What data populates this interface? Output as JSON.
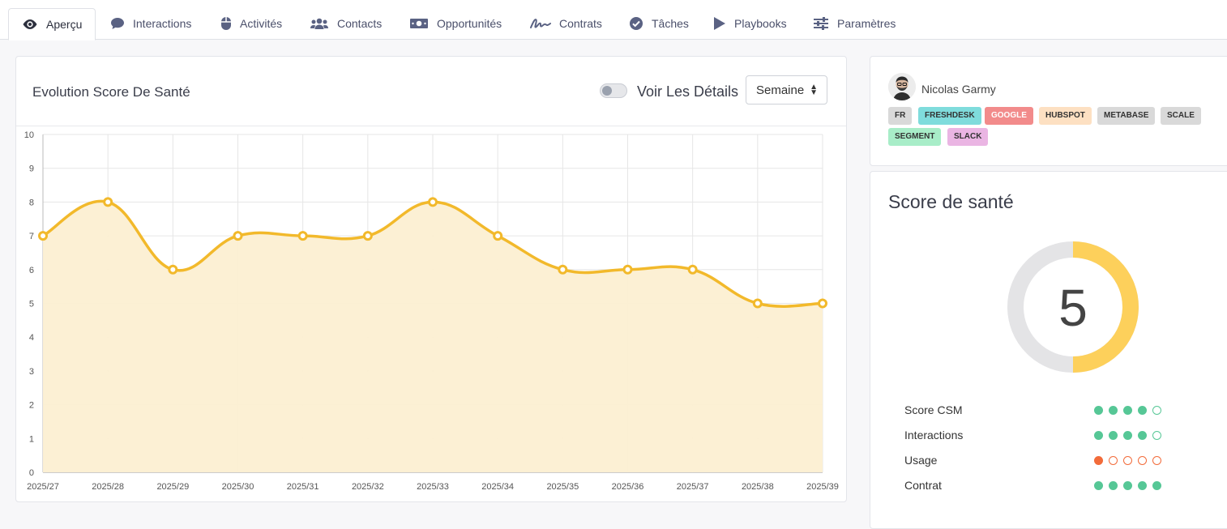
{
  "tabs": [
    {
      "label": "Aperçu",
      "icon": "eye-icon",
      "active": true
    },
    {
      "label": "Interactions",
      "icon": "chat-bubble-icon"
    },
    {
      "label": "Activités",
      "icon": "mouse-icon"
    },
    {
      "label": "Contacts",
      "icon": "users-icon"
    },
    {
      "label": "Opportunités",
      "icon": "money-bill-icon"
    },
    {
      "label": "Contrats",
      "icon": "signature-icon"
    },
    {
      "label": "Tâches",
      "icon": "check-circle-icon"
    },
    {
      "label": "Playbooks",
      "icon": "play-icon"
    },
    {
      "label": "Paramètres",
      "icon": "sliders-icon"
    }
  ],
  "chart_card": {
    "title": "Evolution Score De Santé",
    "toggle_label": "Voir Les Détails",
    "toggle_on": false,
    "period_select": "Semaine"
  },
  "chart_data": {
    "type": "area",
    "categories": [
      "2025/27",
      "2025/28",
      "2025/29",
      "2025/30",
      "2025/31",
      "2025/32",
      "2025/33",
      "2025/34",
      "2025/35",
      "2025/36",
      "2025/37",
      "2025/38",
      "2025/39"
    ],
    "values": [
      7,
      8,
      6,
      7,
      7,
      7,
      8,
      7,
      6,
      6,
      6,
      5,
      5
    ],
    "yticks": [
      "0",
      "1",
      "2",
      "3",
      "4",
      "5",
      "6",
      "7",
      "8",
      "9",
      "10"
    ],
    "ylim": [
      0,
      10
    ],
    "line_color": "#f2b92b",
    "fill_color": "#fcefd2",
    "grid": true
  },
  "profile": {
    "name": "Nicolas Garmy",
    "tags": [
      {
        "label": "FR",
        "color": "#d9d9d9"
      },
      {
        "label": "FRESHDESK",
        "color": "#7fdcdc"
      },
      {
        "label": "GOOGLE",
        "color": "#f28b8b",
        "text_color": "#ffffff"
      },
      {
        "label": "HUBSPOT",
        "color": "#fde0c2"
      },
      {
        "label": "METABASE",
        "color": "#d9d9d9"
      },
      {
        "label": "SCALE",
        "color": "#d9d9d9"
      },
      {
        "label": "SEGMENT",
        "color": "#a8edc8"
      },
      {
        "label": "SLACK",
        "color": "#eab5e3"
      }
    ]
  },
  "health": {
    "title": "Score de santé",
    "score": "5",
    "score_fraction": 0.5,
    "gauge_color": "#fdd05b",
    "gauge_track": "#e4e4e6",
    "metrics": [
      {
        "label": "Score CSM",
        "filled": 4,
        "total": 5,
        "color": "#56c796"
      },
      {
        "label": "Interactions",
        "filled": 4,
        "total": 5,
        "color": "#56c796"
      },
      {
        "label": "Usage",
        "filled": 1,
        "total": 5,
        "color": "#f26b3a"
      },
      {
        "label": "Contrat",
        "filled": 5,
        "total": 5,
        "color": "#56c796"
      }
    ]
  }
}
